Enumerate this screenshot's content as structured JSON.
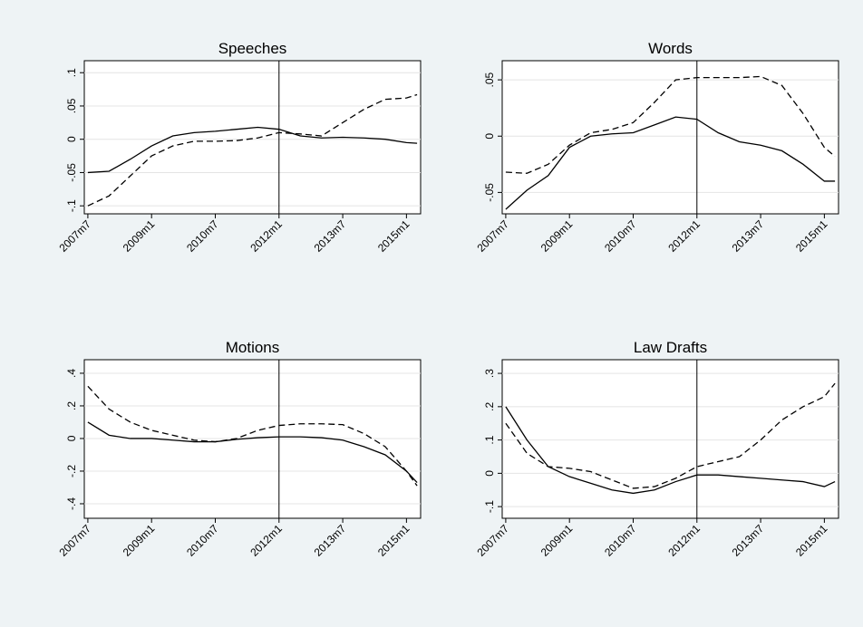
{
  "chart_data": [
    {
      "type": "line",
      "title": "Speeches",
      "x": [
        "2007m7",
        "2008m1",
        "2008m7",
        "2009m1",
        "2009m7",
        "2010m1",
        "2010m7",
        "2011m1",
        "2011m7",
        "2012m1",
        "2012m7",
        "2013m1",
        "2013m7",
        "2014m1",
        "2014m7",
        "2015m1",
        "2015m4"
      ],
      "series": [
        {
          "color": "#000000",
          "dashed": false,
          "values": [
            -0.05,
            -0.048,
            -0.03,
            -0.01,
            0.005,
            0.01,
            0.012,
            0.015,
            0.018,
            0.015,
            0.005,
            0.002,
            0.003,
            0.002,
            0,
            -0.005,
            -0.006
          ]
        },
        {
          "color": "#000000",
          "dashed": true,
          "values": [
            -0.1,
            -0.085,
            -0.055,
            -0.025,
            -0.01,
            -0.003,
            -0.003,
            -0.002,
            0.002,
            0.01,
            0.008,
            0.005,
            0.025,
            0.045,
            0.06,
            0.062,
            0.067
          ]
        }
      ],
      "xlim": [
        "2007m6",
        "2015m5"
      ],
      "xticks": [
        "2007m7",
        "2009m1",
        "2010m7",
        "2012m1",
        "2013m7",
        "2015m1"
      ],
      "ylim": [
        -0.112,
        0.118
      ],
      "yticks": [
        {
          "value": -0.1,
          "label": "-.1"
        },
        {
          "value": -0.05,
          "label": "-.05"
        },
        0,
        {
          "value": 0.05,
          "label": ".05"
        },
        {
          "value": 0.1,
          "label": ".1"
        }
      ],
      "vline": "2012m1",
      "grid": true
    },
    {
      "type": "line",
      "title": "Words",
      "x": [
        "2007m7",
        "2008m1",
        "2008m7",
        "2009m1",
        "2009m7",
        "2010m1",
        "2010m7",
        "2011m1",
        "2011m7",
        "2012m1",
        "2012m7",
        "2013m1",
        "2013m7",
        "2014m1",
        "2014m7",
        "2015m1",
        "2015m4"
      ],
      "series": [
        {
          "color": "#000000",
          "dashed": false,
          "values": [
            -0.065,
            -0.048,
            -0.035,
            -0.01,
            0,
            0.002,
            0.003,
            0.01,
            0.017,
            0.015,
            0.003,
            -0.005,
            -0.008,
            -0.013,
            -0.025,
            -0.04,
            -0.04
          ]
        },
        {
          "color": "#000000",
          "dashed": true,
          "values": [
            -0.032,
            -0.033,
            -0.025,
            -0.008,
            0.003,
            0.006,
            0.012,
            0.03,
            0.05,
            0.052,
            0.052,
            0.052,
            0.053,
            0.045,
            0.02,
            -0.01,
            -0.018
          ]
        }
      ],
      "xlim": [
        "2007m6",
        "2015m5"
      ],
      "xticks": [
        "2007m7",
        "2009m1",
        "2010m7",
        "2012m1",
        "2013m7",
        "2015m1"
      ],
      "ylim": [
        -0.069,
        0.067
      ],
      "yticks": [
        {
          "value": -0.05,
          "label": "-.05"
        },
        0,
        {
          "value": 0.05,
          "label": ".05"
        }
      ],
      "vline": "2012m1",
      "grid": true
    },
    {
      "type": "line",
      "title": "Motions",
      "x": [
        "2007m7",
        "2008m1",
        "2008m7",
        "2009m1",
        "2009m7",
        "2010m1",
        "2010m7",
        "2011m1",
        "2011m7",
        "2012m1",
        "2012m7",
        "2013m1",
        "2013m7",
        "2014m1",
        "2014m7",
        "2015m1",
        "2015m4"
      ],
      "series": [
        {
          "color": "#000000",
          "dashed": false,
          "values": [
            0.1,
            0.02,
            0,
            0,
            -0.01,
            -0.02,
            -0.02,
            -0.005,
            0.005,
            0.01,
            0.01,
            0.005,
            -0.01,
            -0.05,
            -0.1,
            -0.2,
            -0.27
          ]
        },
        {
          "color": "#000000",
          "dashed": true,
          "values": [
            0.32,
            0.18,
            0.1,
            0.05,
            0.02,
            -0.01,
            -0.02,
            0,
            0.05,
            0.08,
            0.09,
            0.09,
            0.085,
            0.03,
            -0.05,
            -0.2,
            -0.29
          ]
        }
      ],
      "xlim": [
        "2007m6",
        "2015m5"
      ],
      "xticks": [
        "2007m7",
        "2009m1",
        "2010m7",
        "2012m1",
        "2013m7",
        "2015m1"
      ],
      "ylim": [
        -0.489,
        0.483
      ],
      "yticks": [
        {
          "value": -0.4,
          "label": "-.4"
        },
        {
          "value": -0.2,
          "label": "-.2"
        },
        0,
        {
          "value": 0.2,
          "label": ".2"
        },
        {
          "value": 0.4,
          "label": ".4"
        }
      ],
      "vline": "2012m1",
      "grid": true
    },
    {
      "type": "line",
      "title": "Law Drafts",
      "x": [
        "2007m7",
        "2008m1",
        "2008m7",
        "2009m1",
        "2009m7",
        "2010m1",
        "2010m7",
        "2011m1",
        "2011m7",
        "2012m1",
        "2012m7",
        "2013m1",
        "2013m7",
        "2014m1",
        "2014m7",
        "2015m1",
        "2015m4"
      ],
      "series": [
        {
          "color": "#000000",
          "dashed": false,
          "values": [
            0.2,
            0.1,
            0.02,
            -0.01,
            -0.03,
            -0.05,
            -0.06,
            -0.05,
            -0.025,
            -0.005,
            -0.005,
            -0.01,
            -0.015,
            -0.02,
            -0.025,
            -0.04,
            -0.025
          ]
        },
        {
          "color": "#000000",
          "dashed": true,
          "values": [
            0.15,
            0.06,
            0.02,
            0.015,
            0.005,
            -0.02,
            -0.045,
            -0.04,
            -0.015,
            0.02,
            0.035,
            0.05,
            0.1,
            0.16,
            0.2,
            0.23,
            0.27
          ]
        }
      ],
      "xlim": [
        "2007m6",
        "2015m5"
      ],
      "xticks": [
        "2007m7",
        "2009m1",
        "2010m7",
        "2012m1",
        "2013m7",
        "2015m1"
      ],
      "ylim": [
        -0.135,
        0.341
      ],
      "yticks": [
        {
          "value": -0.1,
          "label": "-.1"
        },
        0,
        {
          "value": 0.1,
          "label": ".1"
        },
        {
          "value": 0.2,
          "label": ".2"
        },
        {
          "value": 0.3,
          "label": ".3"
        }
      ],
      "vline": "2012m1",
      "grid": true
    }
  ]
}
